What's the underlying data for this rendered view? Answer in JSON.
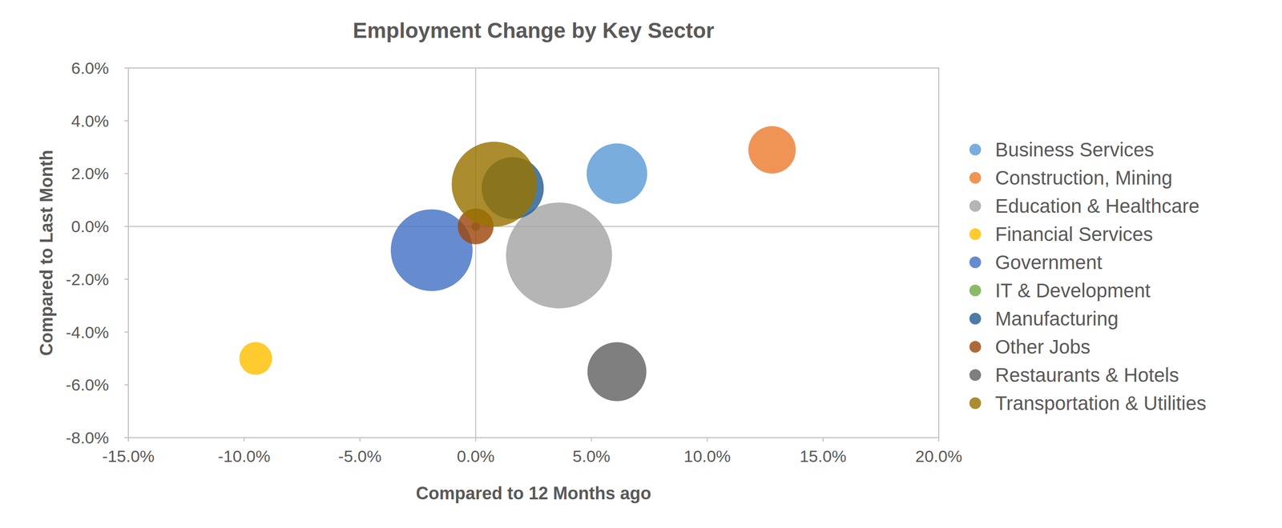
{
  "chart_data": {
    "type": "bubble",
    "title": "Employment Change by Key Sector",
    "x_label": "Compared to 12 Months ago",
    "y_label": "Compared to Last Month",
    "xlim": [
      -15,
      20
    ],
    "xticks": [
      {
        "value": -15,
        "label": "-15.0%"
      },
      {
        "value": -10,
        "label": "-10.0%"
      },
      {
        "value": -5,
        "label": "-5.0%"
      },
      {
        "value": 0,
        "label": "0.0%"
      },
      {
        "value": 5,
        "label": "5.0%"
      },
      {
        "value": 10,
        "label": "10.0%"
      },
      {
        "value": 15,
        "label": "15.0%"
      },
      {
        "value": 20,
        "label": "20.0%"
      }
    ],
    "ylim": [
      -8,
      6
    ],
    "yticks": [
      {
        "value": -8,
        "label": "-8.0%"
      },
      {
        "value": -6,
        "label": "-6.0%"
      },
      {
        "value": -4,
        "label": "-4.0%"
      },
      {
        "value": -2,
        "label": "-2.0%"
      },
      {
        "value": 0,
        "label": "0.0%"
      },
      {
        "value": 2,
        "label": "2.0%"
      },
      {
        "value": 4,
        "label": "4.0%"
      },
      {
        "value": 6,
        "label": "6.0%"
      }
    ],
    "grid": false,
    "legend": "right",
    "series": [
      {
        "name": "Business Services",
        "color": "#5b9bd5",
        "x": [
          6.1
        ],
        "values": [
          2.0
        ],
        "sizes": [
          13.7
        ]
      },
      {
        "name": "Construction, Mining",
        "color": "#ed7d31",
        "x": [
          12.8
        ],
        "values": [
          2.9
        ],
        "sizes": [
          8.4
        ]
      },
      {
        "name": "Education & Healthcare",
        "color": "#a5a5a5",
        "x": [
          3.6
        ],
        "values": [
          -1.1
        ],
        "sizes": [
          42
        ]
      },
      {
        "name": "Financial Services",
        "color": "#ffc000",
        "x": [
          -9.5
        ],
        "values": [
          -5.0
        ],
        "sizes": [
          4
        ]
      },
      {
        "name": "Government",
        "color": "#4472c4",
        "x": [
          -1.9
        ],
        "values": [
          -0.9
        ],
        "sizes": [
          25
        ]
      },
      {
        "name": "IT & Development",
        "color": "#70ad47",
        "x": [
          0.0
        ],
        "values": [
          0.0
        ],
        "sizes": [
          0.3
        ]
      },
      {
        "name": "Manufacturing",
        "color": "#255e91",
        "x": [
          1.6
        ],
        "values": [
          1.45
        ],
        "sizes": [
          14.4
        ]
      },
      {
        "name": "Other Jobs",
        "color": "#9e480e",
        "x": [
          0.0
        ],
        "values": [
          0.0
        ],
        "sizes": [
          4.8
        ]
      },
      {
        "name": "Restaurants & Hotels",
        "color": "#636363",
        "x": [
          6.1
        ],
        "values": [
          -5.5
        ],
        "sizes": [
          13
        ]
      },
      {
        "name": "Transportation & Utilities",
        "color": "#997300",
        "x": [
          0.8
        ],
        "values": [
          1.6
        ],
        "sizes": [
          27
        ]
      }
    ]
  }
}
